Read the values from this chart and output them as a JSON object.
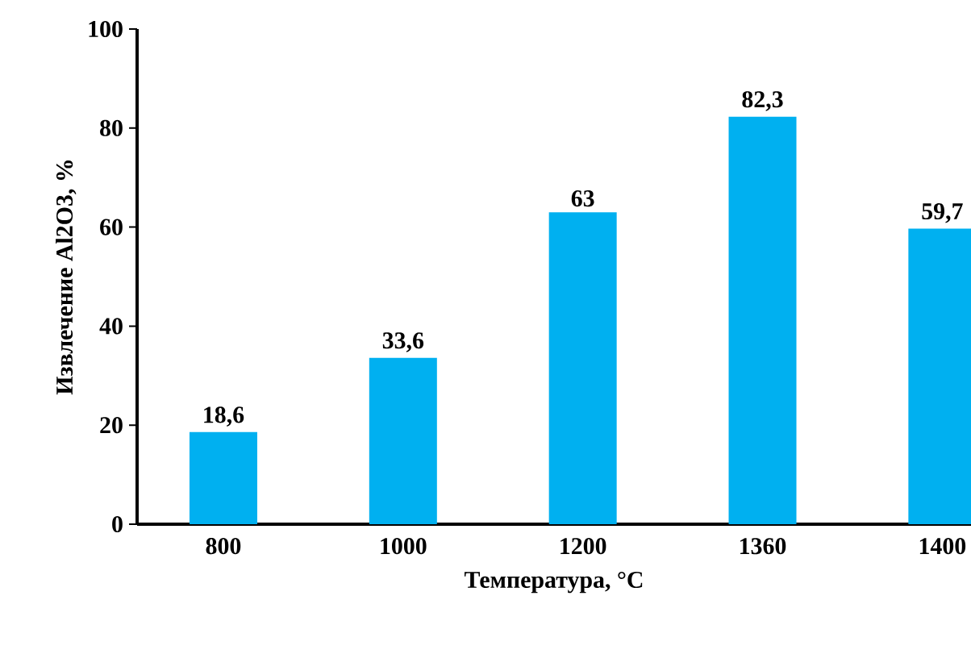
{
  "chart_data": {
    "type": "bar",
    "xlabel": "Температура, °C",
    "ylabel": "Извлечение Al2O3, %",
    "categories": [
      "800",
      "1000",
      "1200",
      "1360",
      "1400"
    ],
    "values": [
      18.6,
      33.6,
      63,
      82.3,
      59.7
    ],
    "value_labels": [
      "18,6",
      "33,6",
      "63",
      "82,3",
      "59,7"
    ],
    "color": "#00b0f0",
    "ylim": [
      0,
      100
    ],
    "yticks": [
      0,
      20,
      40,
      60,
      80,
      100
    ],
    "grid": false
  }
}
